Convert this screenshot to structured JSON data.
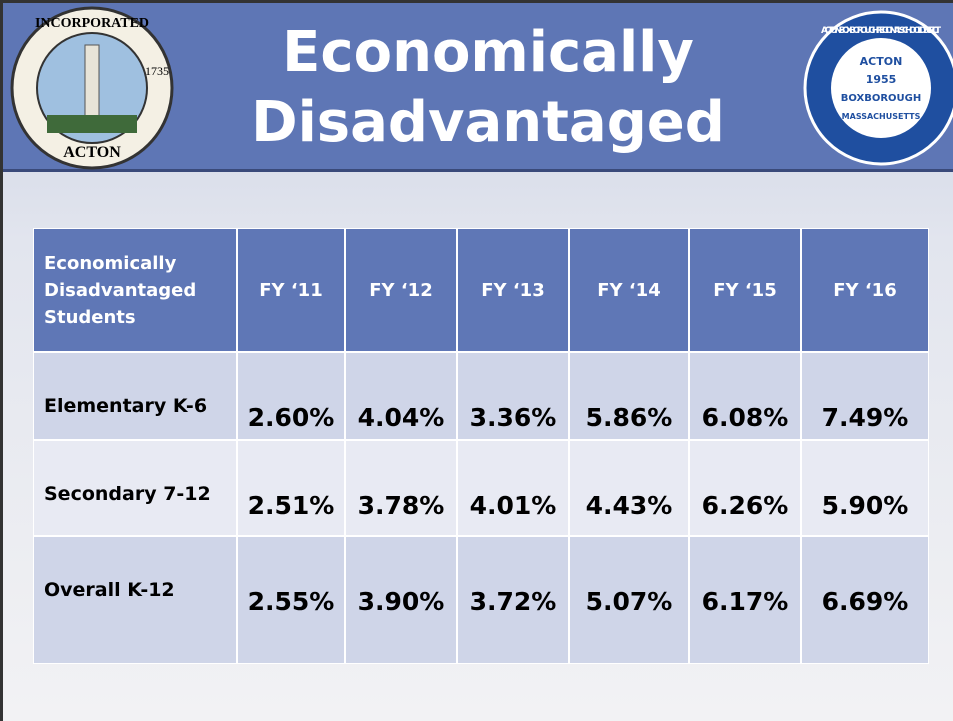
{
  "header": {
    "title_lines": [
      "Economically",
      "Disadvantaged"
    ],
    "left_logo": [
      "INCORPORATED",
      "1735",
      "ACTON"
    ],
    "right_logo": [
      "ACTON-BOXBOROUGH REGIONAL SCHOOL DISTRICT",
      "ACTON",
      "1955",
      "BOXBOROUGH",
      "MASSACHUSETTS"
    ]
  },
  "table": {
    "columns": [
      "Economically Disadvantaged Students",
      "FY ‘11",
      "FY ‘12",
      "FY ‘13",
      "FY ‘14",
      "FY ‘15",
      "FY ‘16"
    ],
    "rows": [
      [
        "Elementary K-6",
        "2.60%",
        "4.04%",
        "3.36%",
        "5.86%",
        "6.08%",
        "7.49%"
      ],
      [
        "Secondary 7-12",
        "2.51%",
        "3.78%",
        "4.01%",
        "4.43%",
        "6.26%",
        "5.90%"
      ],
      [
        "Overall K-12",
        "2.55%",
        "3.90%",
        "3.72%",
        "5.07%",
        "6.17%",
        "6.69%"
      ]
    ]
  }
}
